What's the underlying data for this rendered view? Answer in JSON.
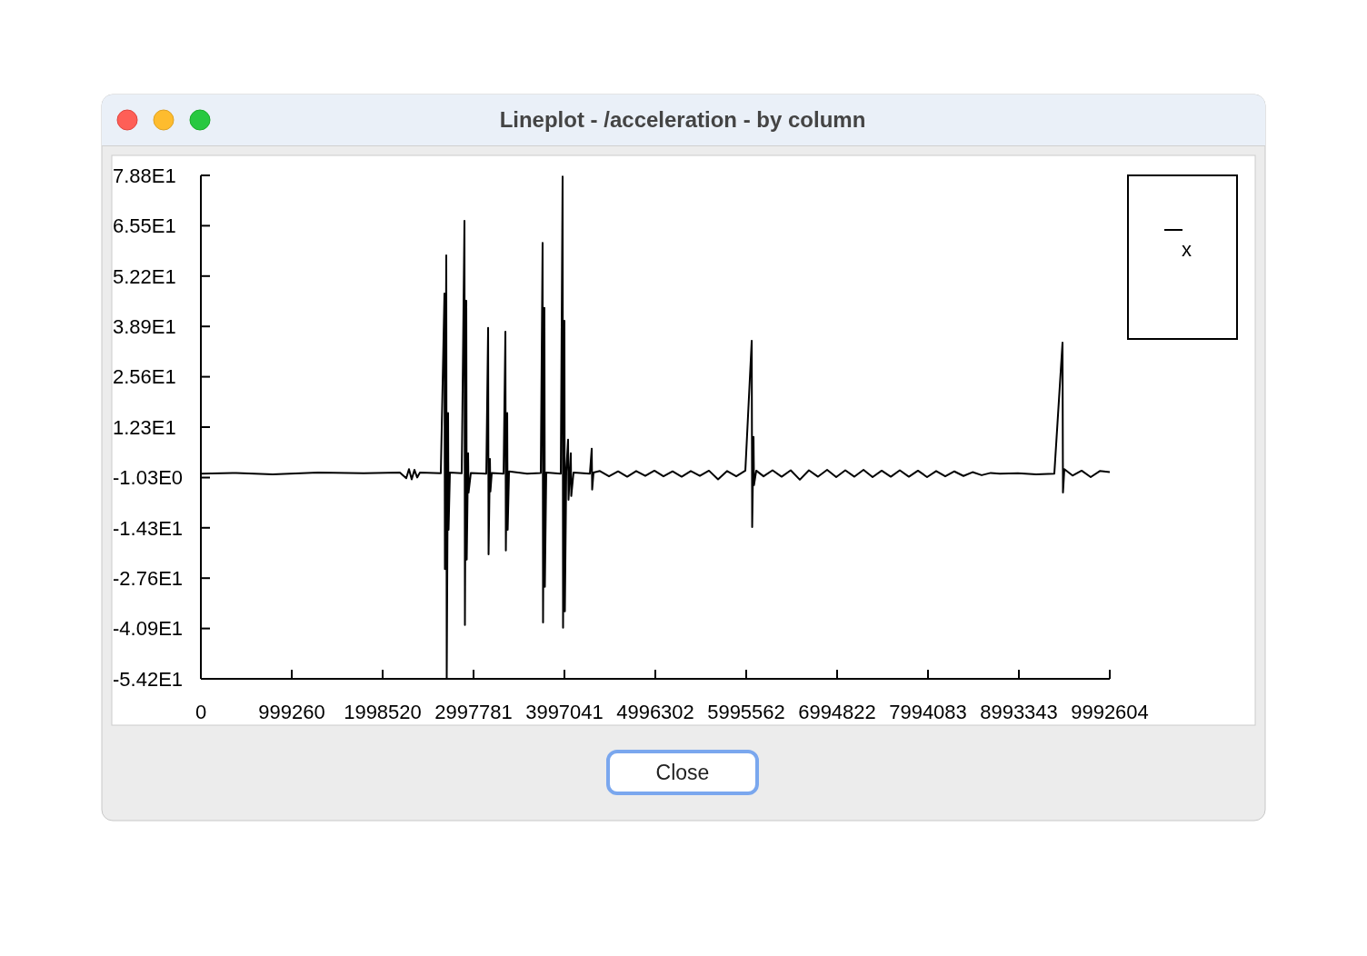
{
  "chart_data": {
    "type": "line",
    "title": "Lineplot - /acceleration - by column",
    "annotations": [
      "Close"
    ],
    "legend": "top right",
    "grid": false,
    "xlim": [
      0,
      9992604
    ],
    "xticks": [
      0,
      999260,
      1998520,
      2997781,
      3997041,
      4996302,
      5995562,
      6994822,
      7994083,
      8993343,
      9992604
    ],
    "ylim": [
      -54.2,
      78.8
    ],
    "yticks": [
      {
        "value": 78.8,
        "label": "7.88E1"
      },
      {
        "value": 65.5,
        "label": "6.55E1"
      },
      {
        "value": 52.2,
        "label": "5.22E1"
      },
      {
        "value": 38.9,
        "label": "3.89E1"
      },
      {
        "value": 25.6,
        "label": "2.56E1"
      },
      {
        "value": 12.3,
        "label": "1.23E1"
      },
      {
        "value": -1.03,
        "label": "-1.03E0"
      },
      {
        "value": -14.3,
        "label": "-1.43E1"
      },
      {
        "value": -27.6,
        "label": "-2.76E1"
      },
      {
        "value": -40.9,
        "label": "-4.09E1"
      },
      {
        "value": -54.2,
        "label": "-5.42E1"
      }
    ],
    "x": [
      0,
      389700,
      789400,
      1289000,
      1789000,
      2188000,
      2258000,
      2288000,
      2318000,
      2348000,
      2378000,
      2408000,
      2638000,
      2678000,
      2683000,
      2698000,
      2703000,
      2718000,
      2723000,
      2738000,
      2868000,
      2898000,
      2903000,
      2918000,
      2923000,
      2938000,
      2943000,
      2968000,
      3138000,
      3158000,
      3163000,
      3178000,
      3183000,
      3198000,
      3328000,
      3348000,
      3353000,
      3368000,
      3373000,
      3388000,
      3587000,
      3737000,
      3757000,
      3762000,
      3777000,
      3782000,
      3797000,
      3957000,
      3977000,
      3982000,
      3997000,
      4002000,
      4017000,
      4037000,
      4042000,
      4067000,
      4072000,
      4097000,
      4277000,
      4297000,
      4302000,
      4317000,
      4387000,
      4487000,
      4587000,
      4687000,
      4786000,
      4886000,
      4986000,
      5086000,
      5186000,
      5286000,
      5386000,
      5486000,
      5586000,
      5686000,
      5786000,
      5886000,
      5986000,
      6056000,
      6061000,
      6076000,
      6081000,
      6106000,
      6186000,
      6285000,
      6385000,
      6485000,
      6585000,
      6685000,
      6785000,
      6885000,
      6985000,
      7085000,
      7185000,
      7285000,
      7385000,
      7485000,
      7585000,
      7684000,
      7784000,
      7884000,
      7984000,
      8084000,
      8184000,
      8284000,
      8384000,
      8484000,
      8584000,
      8684000,
      8784000,
      8983000,
      9183000,
      9383000,
      9473000,
      9478000,
      9493000,
      9583000,
      9683000,
      9783000,
      9883000,
      9992604
    ],
    "series": [
      {
        "name": "x",
        "color": "#000000",
        "values": [
          0,
          0.2,
          -0.2,
          0.3,
          0.1,
          0.3,
          -1.2,
          1.2,
          -1.5,
          1.0,
          -1.0,
          0.3,
          0.1,
          47.6,
          -25.2,
          57.7,
          -54.0,
          16.0,
          -14.8,
          0.3,
          0.1,
          66.8,
          -40.0,
          45.7,
          -22.7,
          5.4,
          -5.0,
          0.2,
          0,
          38.5,
          -21.3,
          3.9,
          -4.7,
          0.2,
          0,
          37.5,
          -20.3,
          16.0,
          -14.8,
          0.6,
          0,
          0.2,
          61.0,
          -39.3,
          43.8,
          -29.9,
          0.3,
          0,
          78.5,
          -40.7,
          40.4,
          -36.4,
          0.5,
          9.0,
          -6.9,
          5.4,
          -5.9,
          0.3,
          0,
          6.6,
          -4.2,
          0.3,
          0.7,
          -0.7,
          0.6,
          -0.8,
          0.7,
          -0.6,
          0.8,
          -0.7,
          0.6,
          -0.8,
          0.7,
          -0.6,
          0.8,
          -1.5,
          0.7,
          -0.7,
          0.8,
          35.1,
          -14.1,
          9.7,
          -3.0,
          0.8,
          -0.7,
          0.9,
          -0.8,
          0.9,
          -1.6,
          0.9,
          -0.8,
          1.0,
          -0.9,
          0.9,
          -0.8,
          1.0,
          -0.9,
          0.8,
          -0.8,
          0.9,
          -0.8,
          0.8,
          -0.9,
          0.7,
          -0.7,
          0.6,
          -0.6,
          0.4,
          -0.4,
          0.2,
          0,
          0.1,
          -0.2,
          0,
          34.6,
          -5.0,
          1.2,
          -0.5,
          0.8,
          -0.9,
          0.7,
          0.4
        ]
      }
    ]
  }
}
